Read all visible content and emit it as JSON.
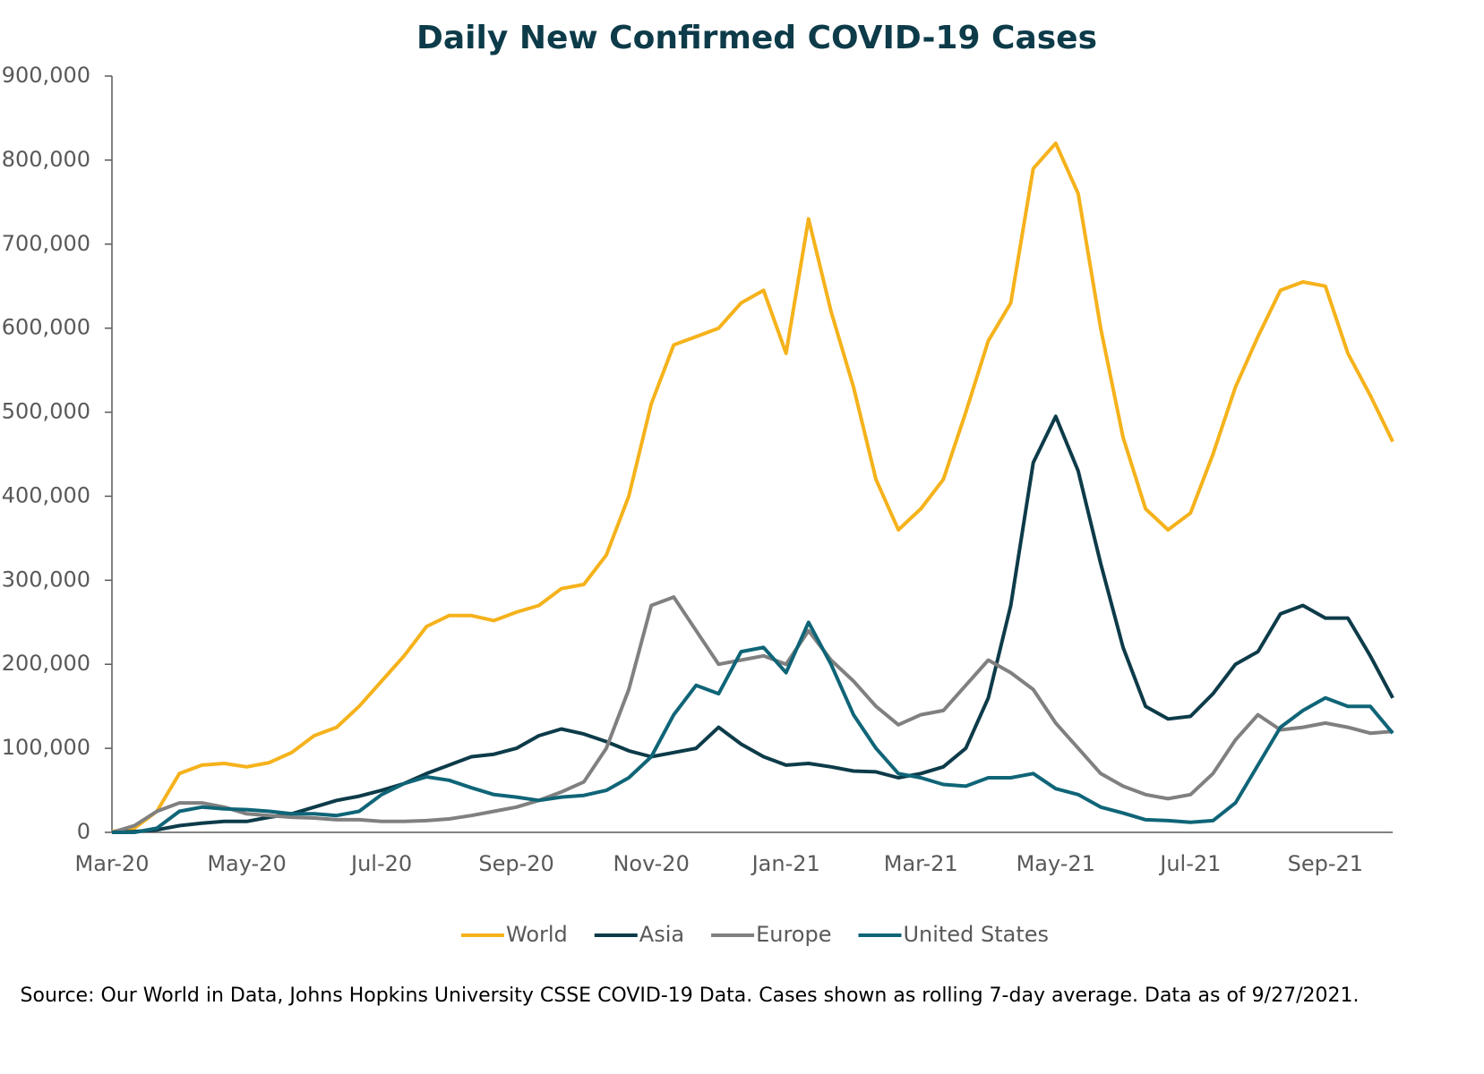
{
  "chart_data": {
    "type": "line",
    "title": "Daily New Confirmed COVID-19 Cases",
    "note": "Source: Our World in Data, Johns Hopkins University CSSE COVID-19 Data. Cases shown as rolling 7-day average. Data as of 9/27/2021.",
    "categories": [
      "Mar-20",
      null,
      null,
      null,
      null,
      null,
      "May-20",
      null,
      null,
      null,
      null,
      null,
      "Jul-20",
      null,
      null,
      null,
      null,
      null,
      "Sep-20",
      null,
      null,
      null,
      null,
      null,
      "Nov-20",
      null,
      null,
      null,
      null,
      null,
      "Jan-21",
      null,
      null,
      null,
      null,
      null,
      "Mar-21",
      null,
      null,
      null,
      null,
      null,
      "May-21",
      null,
      null,
      null,
      null,
      null,
      "Jul-21",
      null,
      null,
      null,
      null,
      null,
      "Sep-21",
      null,
      null,
      null
    ],
    "series": [
      {
        "name": "World",
        "color": "#f5b21b",
        "values": [
          1000,
          5000,
          25000,
          70000,
          80000,
          82000,
          78000,
          83000,
          95000,
          115000,
          125000,
          150000,
          180000,
          210000,
          245000,
          258000,
          258000,
          252000,
          262000,
          270000,
          290000,
          295000,
          330000,
          400000,
          510000,
          580000,
          590000,
          600000,
          630000,
          645000,
          570000,
          730000,
          620000,
          530000,
          420000,
          360000,
          385000,
          420000,
          500000,
          585000,
          630000,
          790000,
          820000,
          760000,
          600000,
          470000,
          385000,
          360000,
          380000,
          450000,
          530000,
          590000,
          645000,
          655000,
          650000,
          570000,
          520000,
          465000
        ]
      },
      {
        "name": "Asia",
        "color": "#0d3b49",
        "values": [
          0,
          1000,
          3000,
          8000,
          11000,
          13000,
          13000,
          18000,
          22000,
          30000,
          38000,
          43000,
          50000,
          58000,
          70000,
          80000,
          90000,
          93000,
          100000,
          115000,
          123000,
          117000,
          108000,
          97000,
          90000,
          95000,
          100000,
          125000,
          105000,
          90000,
          80000,
          82000,
          78000,
          73000,
          72000,
          65000,
          70000,
          78000,
          100000,
          160000,
          270000,
          440000,
          495000,
          430000,
          320000,
          220000,
          150000,
          135000,
          138000,
          165000,
          200000,
          215000,
          260000,
          270000,
          255000,
          255000,
          210000,
          160000
        ]
      },
      {
        "name": "Europe",
        "color": "#808080",
        "values": [
          0,
          8000,
          25000,
          35000,
          35000,
          30000,
          22000,
          20000,
          18000,
          17000,
          15000,
          15000,
          13000,
          13000,
          14000,
          16000,
          20000,
          25000,
          30000,
          38000,
          48000,
          60000,
          100000,
          170000,
          270000,
          280000,
          240000,
          200000,
          205000,
          210000,
          200000,
          240000,
          205000,
          180000,
          150000,
          128000,
          140000,
          145000,
          175000,
          205000,
          190000,
          170000,
          130000,
          100000,
          70000,
          55000,
          45000,
          40000,
          45000,
          70000,
          110000,
          140000,
          122000,
          125000,
          130000,
          125000,
          118000,
          120000
        ]
      },
      {
        "name": "United States",
        "color": "#0f6577",
        "values": [
          0,
          0,
          5000,
          25000,
          30000,
          28000,
          27000,
          25000,
          22000,
          22000,
          20000,
          25000,
          45000,
          58000,
          66000,
          62000,
          53000,
          45000,
          42000,
          38000,
          42000,
          44000,
          50000,
          65000,
          90000,
          140000,
          175000,
          165000,
          215000,
          220000,
          190000,
          250000,
          200000,
          140000,
          100000,
          70000,
          65000,
          57000,
          55000,
          65000,
          65000,
          70000,
          52000,
          45000,
          30000,
          23000,
          15000,
          14000,
          12000,
          14000,
          35000,
          80000,
          125000,
          145000,
          160000,
          150000,
          150000,
          118000
        ]
      }
    ],
    "ylim": [
      0,
      900000
    ],
    "yticks": [
      0,
      {
        "value": 100000,
        "label": "100,000"
      },
      {
        "value": 200000,
        "label": "200,000"
      },
      {
        "value": 300000,
        "label": "300,000"
      },
      {
        "value": 400000,
        "label": "400,000"
      },
      {
        "value": 500000,
        "label": "500,000"
      },
      {
        "value": 600000,
        "label": "600,000"
      },
      {
        "value": 700000,
        "label": "700,000"
      },
      {
        "value": 800000,
        "label": "800,000"
      },
      {
        "value": 900000,
        "label": "900,000"
      }
    ],
    "grid": false,
    "legend": "bottom"
  }
}
